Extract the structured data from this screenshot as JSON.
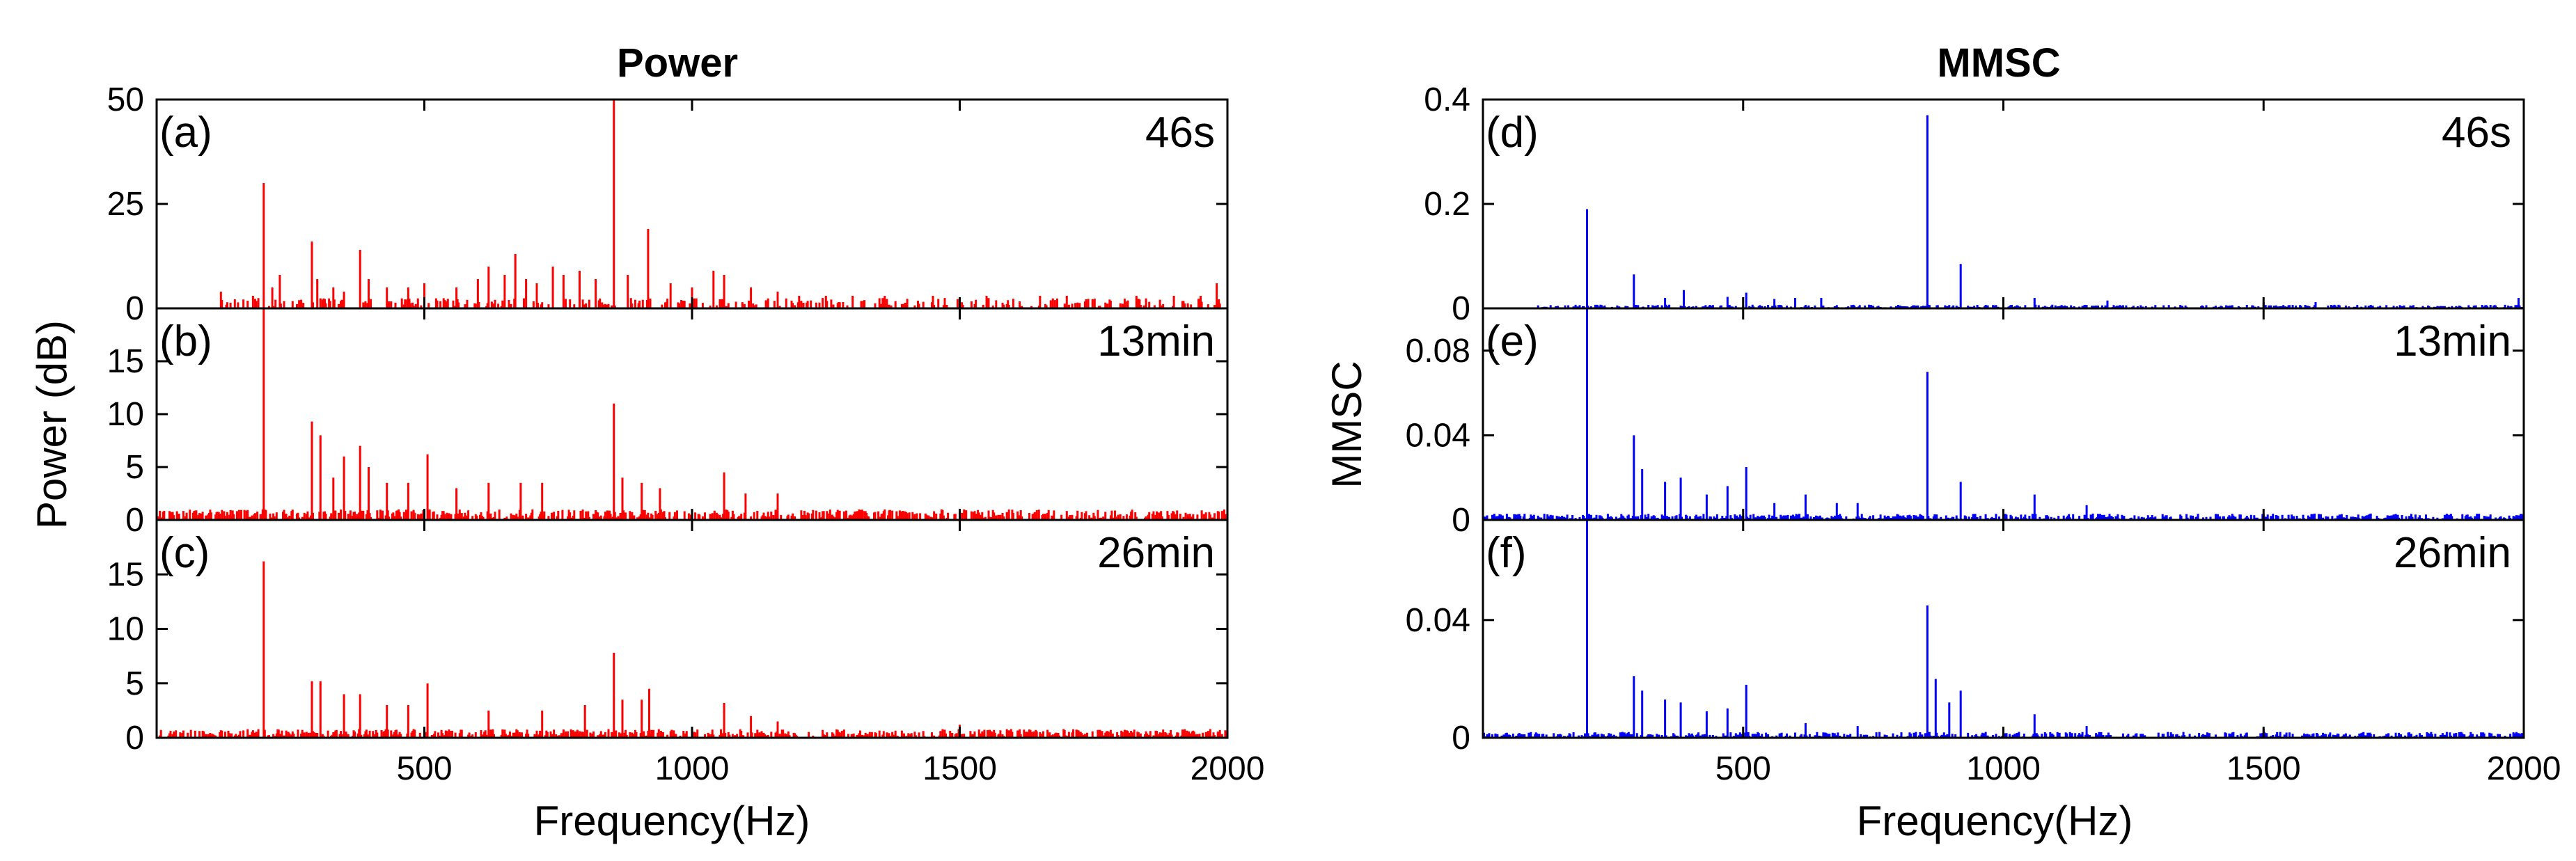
{
  "figure": {
    "left_title": "Power",
    "right_title": "MMSC",
    "left_ylabel": "Power (dB)",
    "right_ylabel": "MMSC",
    "xlabel": "Frequency(Hz)"
  },
  "chart_data": [
    {
      "id": "a",
      "type": "line",
      "column": "Power",
      "tag": "(a)",
      "time_label": "46s",
      "color": "#ff0000",
      "xlim": [
        0,
        2000
      ],
      "ylim": [
        0,
        50
      ],
      "yticks": [
        "0",
        "25",
        "50"
      ],
      "yticks_values": [
        0,
        25,
        50
      ],
      "xticks": [
        "500",
        "1000",
        "1500",
        "2000"
      ],
      "xticks_values": [
        500,
        1000,
        1500,
        2000
      ],
      "show_xtick_labels": false,
      "peaks": [
        [
          120,
          4
        ],
        [
          180,
          3
        ],
        [
          200,
          30
        ],
        [
          215,
          5
        ],
        [
          230,
          8
        ],
        [
          290,
          16
        ],
        [
          300,
          7
        ],
        [
          330,
          5
        ],
        [
          350,
          4
        ],
        [
          380,
          14
        ],
        [
          395,
          7
        ],
        [
          430,
          5
        ],
        [
          470,
          5
        ],
        [
          500,
          6
        ],
        [
          560,
          5
        ],
        [
          600,
          7
        ],
        [
          620,
          10
        ],
        [
          650,
          8
        ],
        [
          670,
          13
        ],
        [
          690,
          7
        ],
        [
          710,
          6
        ],
        [
          740,
          10
        ],
        [
          760,
          8
        ],
        [
          790,
          9
        ],
        [
          820,
          7
        ],
        [
          853,
          50
        ],
        [
          880,
          8
        ],
        [
          918,
          19
        ],
        [
          960,
          6
        ],
        [
          1000,
          5
        ],
        [
          1040,
          9
        ],
        [
          1060,
          8
        ],
        [
          1110,
          5
        ],
        [
          1160,
          4
        ],
        [
          1200,
          3
        ],
        [
          1250,
          3
        ],
        [
          1300,
          3
        ],
        [
          1360,
          3
        ],
        [
          1450,
          3
        ],
        [
          1550,
          3
        ],
        [
          1650,
          3
        ],
        [
          1700,
          3
        ],
        [
          1830,
          3
        ],
        [
          1900,
          3
        ],
        [
          1950,
          3
        ],
        [
          1980,
          6
        ]
      ],
      "noise": {
        "level": 2.5,
        "spike_prob": 0.28,
        "range": [
          120,
          2000
        ]
      }
    },
    {
      "id": "b",
      "type": "line",
      "column": "Power",
      "tag": "(b)",
      "time_label": "13min",
      "color": "#ff0000",
      "xlim": [
        0,
        2000
      ],
      "ylim": [
        0,
        20
      ],
      "yticks": [
        "0",
        "5",
        "10",
        "15"
      ],
      "yticks_values": [
        0,
        5,
        10,
        15
      ],
      "xticks": [
        "500",
        "1000",
        "1500",
        "2000"
      ],
      "xticks_values": [
        500,
        1000,
        1500,
        2000
      ],
      "show_xtick_labels": false,
      "peaks": [
        [
          200,
          20
        ],
        [
          290,
          9.3
        ],
        [
          305,
          8
        ],
        [
          330,
          4
        ],
        [
          350,
          6
        ],
        [
          380,
          7
        ],
        [
          395,
          5
        ],
        [
          430,
          3.5
        ],
        [
          470,
          3.5
        ],
        [
          505,
          6.2
        ],
        [
          560,
          3
        ],
        [
          620,
          3.5
        ],
        [
          680,
          3.5
        ],
        [
          720,
          3.5
        ],
        [
          853,
          11
        ],
        [
          870,
          4
        ],
        [
          905,
          3.5
        ],
        [
          940,
          3
        ],
        [
          1060,
          4.5
        ],
        [
          1100,
          2.5
        ],
        [
          1160,
          2.5
        ]
      ],
      "noise": {
        "level": 1.0,
        "spike_prob": 0.55,
        "range": [
          0,
          2000
        ]
      }
    },
    {
      "id": "c",
      "type": "line",
      "column": "Power",
      "tag": "(c)",
      "time_label": "26min",
      "color": "#ff0000",
      "xlim": [
        0,
        2000
      ],
      "ylim": [
        0,
        20
      ],
      "yticks": [
        "0",
        "5",
        "10",
        "15"
      ],
      "yticks_values": [
        0,
        5,
        10,
        15
      ],
      "xticks": [
        "500",
        "1000",
        "1500",
        "2000"
      ],
      "xticks_values": [
        500,
        1000,
        1500,
        2000
      ],
      "show_xtick_labels": true,
      "peaks": [
        [
          200,
          16.2
        ],
        [
          290,
          5.2
        ],
        [
          305,
          5.2
        ],
        [
          350,
          4
        ],
        [
          380,
          4
        ],
        [
          430,
          3
        ],
        [
          470,
          3
        ],
        [
          505,
          5
        ],
        [
          620,
          2.5
        ],
        [
          720,
          2.5
        ],
        [
          800,
          3
        ],
        [
          853,
          7.8
        ],
        [
          870,
          3.5
        ],
        [
          905,
          3.5
        ],
        [
          920,
          4.5
        ],
        [
          1060,
          3.2
        ],
        [
          1110,
          2
        ],
        [
          1160,
          1.5
        ],
        [
          1500,
          1.2
        ]
      ],
      "noise": {
        "level": 0.8,
        "spike_prob": 0.55,
        "range": [
          0,
          2000
        ]
      }
    },
    {
      "id": "d",
      "type": "line",
      "column": "MMSC",
      "tag": "(d)",
      "time_label": "46s",
      "color": "#0000ff",
      "xlim": [
        0,
        2000
      ],
      "ylim": [
        0,
        0.4
      ],
      "yticks": [
        "0",
        "0.2",
        "0.4"
      ],
      "yticks_values": [
        0,
        0.2,
        0.4
      ],
      "xticks": [
        "500",
        "1000",
        "1500",
        "2000"
      ],
      "xticks_values": [
        500,
        1000,
        1500,
        2000
      ],
      "show_xtick_labels": false,
      "peaks": [
        [
          200,
          0.19
        ],
        [
          290,
          0.065
        ],
        [
          350,
          0.02
        ],
        [
          385,
          0.035
        ],
        [
          470,
          0.022
        ],
        [
          505,
          0.03
        ],
        [
          560,
          0.018
        ],
        [
          600,
          0.02
        ],
        [
          650,
          0.02
        ],
        [
          853,
          0.37
        ],
        [
          918,
          0.085
        ],
        [
          1060,
          0.02
        ],
        [
          1200,
          0.015
        ],
        [
          1500,
          0.012
        ],
        [
          1600,
          0.012
        ],
        [
          1990,
          0.02
        ]
      ],
      "noise": {
        "level": 0.007,
        "spike_prob": 0.45,
        "range": [
          100,
          2000
        ]
      }
    },
    {
      "id": "e",
      "type": "line",
      "column": "MMSC",
      "tag": "(e)",
      "time_label": "13min",
      "color": "#0000ff",
      "xlim": [
        0,
        2000
      ],
      "ylim": [
        0,
        0.1
      ],
      "yticks": [
        "0",
        "0.04",
        "0.08"
      ],
      "yticks_values": [
        0,
        0.04,
        0.08
      ],
      "xticks": [
        "500",
        "1000",
        "1500",
        "2000"
      ],
      "xticks_values": [
        500,
        1000,
        1500,
        2000
      ],
      "show_xtick_labels": false,
      "peaks": [
        [
          200,
          0.1
        ],
        [
          290,
          0.04
        ],
        [
          305,
          0.024
        ],
        [
          350,
          0.018
        ],
        [
          380,
          0.02
        ],
        [
          430,
          0.012
        ],
        [
          470,
          0.016
        ],
        [
          505,
          0.025
        ],
        [
          560,
          0.008
        ],
        [
          620,
          0.012
        ],
        [
          680,
          0.008
        ],
        [
          720,
          0.008
        ],
        [
          853,
          0.07
        ],
        [
          918,
          0.018
        ],
        [
          1060,
          0.012
        ],
        [
          1160,
          0.007
        ]
      ],
      "noise": {
        "level": 0.003,
        "spike_prob": 0.5,
        "range": [
          0,
          2000
        ]
      }
    },
    {
      "id": "f",
      "type": "line",
      "column": "MMSC",
      "tag": "(f)",
      "time_label": "26min",
      "color": "#0000ff",
      "xlim": [
        0,
        2000
      ],
      "ylim": [
        0,
        0.074
      ],
      "yticks": [
        "0",
        "0.04"
      ],
      "yticks_values": [
        0,
        0.04
      ],
      "xticks": [
        "500",
        "1000",
        "1500",
        "2000"
      ],
      "xticks_values": [
        500,
        1000,
        1500,
        2000
      ],
      "show_xtick_labels": true,
      "peaks": [
        [
          200,
          0.074
        ],
        [
          290,
          0.021
        ],
        [
          305,
          0.016
        ],
        [
          350,
          0.013
        ],
        [
          380,
          0.012
        ],
        [
          430,
          0.009
        ],
        [
          470,
          0.01
        ],
        [
          505,
          0.018
        ],
        [
          620,
          0.005
        ],
        [
          720,
          0.004
        ],
        [
          853,
          0.045
        ],
        [
          870,
          0.02
        ],
        [
          895,
          0.012
        ],
        [
          918,
          0.016
        ],
        [
          1060,
          0.008
        ],
        [
          1160,
          0.004
        ],
        [
          1500,
          0.003
        ]
      ],
      "noise": {
        "level": 0.002,
        "spike_prob": 0.45,
        "range": [
          0,
          2000
        ]
      }
    }
  ]
}
